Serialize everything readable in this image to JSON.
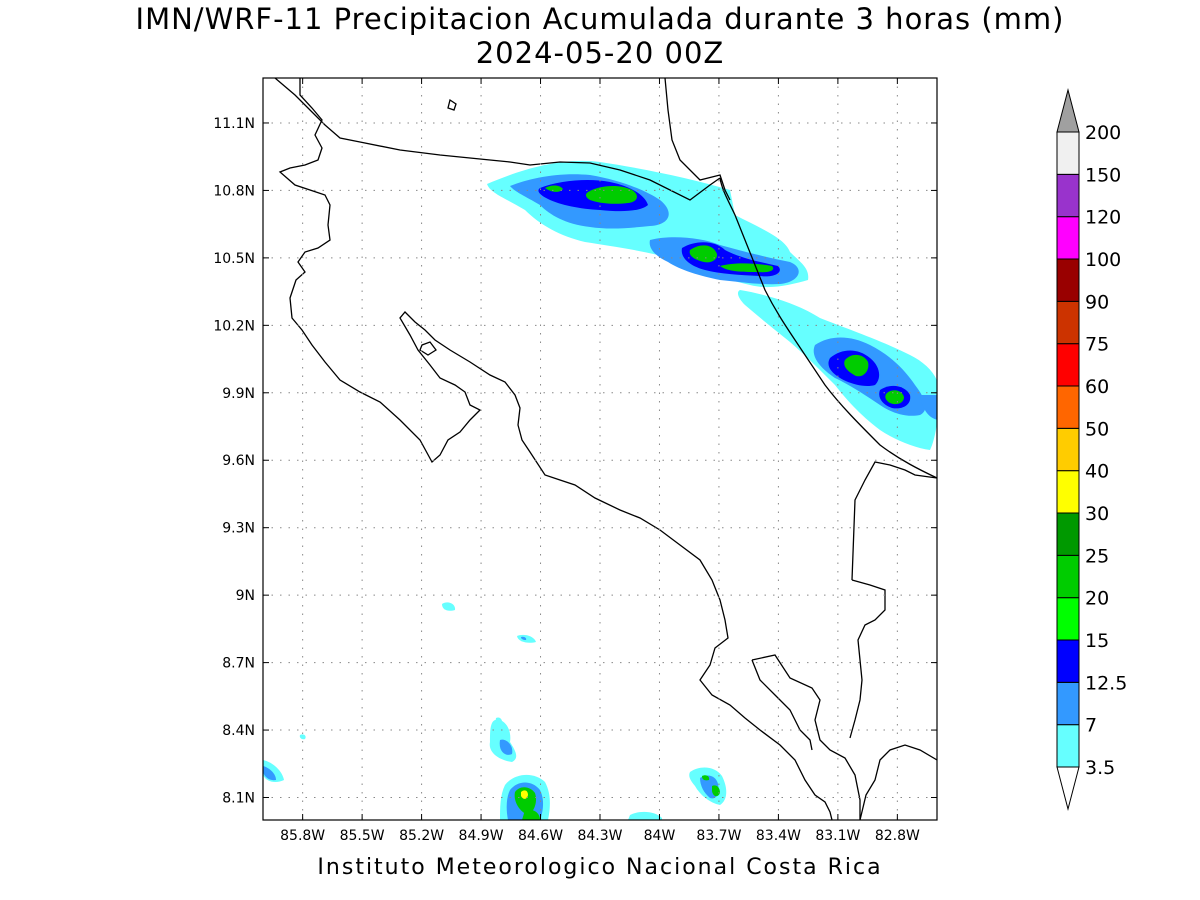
{
  "title": "IMN/WRF-11 Precipitacion Acumulada durante 3 horas (mm)",
  "subtitle": "2024-05-20 00Z",
  "footer": "Instituto Meteorologico Nacional Costa Rica",
  "map": {
    "lon_range": [
      -86.0,
      -82.6
    ],
    "lat_range": [
      8.0,
      11.3
    ],
    "lat_ticks": [
      {
        "value": 11.1,
        "label": "11.1N"
      },
      {
        "value": 10.8,
        "label": "10.8N"
      },
      {
        "value": 10.5,
        "label": "10.5N"
      },
      {
        "value": 10.2,
        "label": "10.2N"
      },
      {
        "value": 9.9,
        "label": "9.9N"
      },
      {
        "value": 9.6,
        "label": "9.6N"
      },
      {
        "value": 9.3,
        "label": "9.3N"
      },
      {
        "value": 9.0,
        "label": "9N"
      },
      {
        "value": 8.7,
        "label": "8.7N"
      },
      {
        "value": 8.4,
        "label": "8.4N"
      },
      {
        "value": 8.1,
        "label": "8.1N"
      }
    ],
    "lon_ticks": [
      {
        "value": -85.8,
        "label": "85.8W"
      },
      {
        "value": -85.5,
        "label": "85.5W"
      },
      {
        "value": -85.2,
        "label": "85.2W"
      },
      {
        "value": -84.9,
        "label": "84.9W"
      },
      {
        "value": -84.6,
        "label": "84.6W"
      },
      {
        "value": -84.3,
        "label": "84.3W"
      },
      {
        "value": -84.0,
        "label": "84W"
      },
      {
        "value": -83.7,
        "label": "83.7W"
      },
      {
        "value": -83.4,
        "label": "83.4W"
      },
      {
        "value": -83.1,
        "label": "83.1W"
      },
      {
        "value": -82.8,
        "label": "82.8W"
      }
    ],
    "grid": true
  },
  "colorbar": {
    "under_color": "#ffffff",
    "over_color": "#a0a0a0",
    "bins": [
      {
        "color": "#66ffff"
      },
      {
        "color": "#3399ff"
      },
      {
        "color": "#0000ff"
      },
      {
        "color": "#00ff00"
      },
      {
        "color": "#00cc00"
      },
      {
        "color": "#009900"
      },
      {
        "color": "#ffff00"
      },
      {
        "color": "#ffcc00"
      },
      {
        "color": "#ff6600"
      },
      {
        "color": "#ff0000"
      },
      {
        "color": "#cc3300"
      },
      {
        "color": "#990000"
      },
      {
        "color": "#ff00ff"
      },
      {
        "color": "#9933cc"
      },
      {
        "color": "#f0f0f0"
      }
    ],
    "levels": [
      "3.5",
      "7",
      "12.5",
      "15",
      "20",
      "25",
      "30",
      "40",
      "50",
      "60",
      "75",
      "90",
      "100",
      "120",
      "150",
      "200"
    ]
  },
  "precip_areas": [
    {
      "region": "north-band",
      "max_class_color": "#00cc00"
    },
    {
      "region": "caribbean-coast-band",
      "max_class_color": "#00cc00"
    },
    {
      "region": "southern-pacific-cells",
      "max_class_color": "#ffff00"
    },
    {
      "region": "central-south-cell",
      "max_class_color": "#00cc00"
    }
  ]
}
